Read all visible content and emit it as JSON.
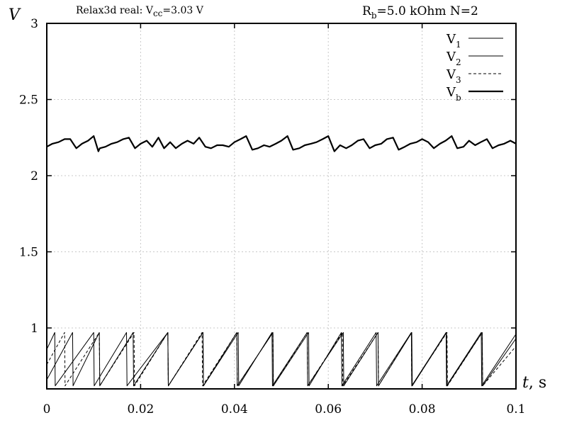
{
  "chart_data": {
    "type": "line",
    "title_left": "Relax3d real: V",
    "title_left_sub": "cc",
    "title_left_tail": "=3.03 V",
    "title_right_pre": "R",
    "title_right_sub": "b",
    "title_right_tail": "=5.0 kOhm N=2",
    "ylabel": "V",
    "xlabel": "t",
    "xlabel_unit": ", s",
    "xlim": [
      0,
      0.1
    ],
    "ylim": [
      0.6,
      3
    ],
    "x_ticks": [
      {
        "v": 0,
        "label": "0"
      },
      {
        "v": 0.02,
        "label": "0.02"
      },
      {
        "v": 0.04,
        "label": "0.04"
      },
      {
        "v": 0.06,
        "label": "0.06"
      },
      {
        "v": 0.08,
        "label": "0.08"
      },
      {
        "v": 0.1,
        "label": "0.1"
      }
    ],
    "y_ticks": [
      {
        "v": 1,
        "label": "1"
      },
      {
        "v": 1.5,
        "label": "1.5"
      },
      {
        "v": 2,
        "label": "2"
      },
      {
        "v": 2.5,
        "label": "2.5"
      },
      {
        "v": 3,
        "label": "3"
      }
    ],
    "grid": true,
    "legend_position": "top-right",
    "series": [
      {
        "name": "V",
        "sub": "1",
        "style": "thin",
        "x": [
          0,
          0.0017,
          0.0018,
          0.01,
          0.0101,
          0.017,
          0.0171,
          0.0258,
          0.0259,
          0.0333,
          0.0334,
          0.0405,
          0.0406,
          0.0482,
          0.0483,
          0.0558,
          0.0559,
          0.0628,
          0.0629,
          0.0702,
          0.0703,
          0.0777,
          0.0778,
          0.0851,
          0.0852,
          0.0926,
          0.0927,
          0.1
        ],
        "y": [
          0.86,
          0.97,
          0.62,
          0.97,
          0.62,
          0.97,
          0.62,
          0.97,
          0.62,
          0.97,
          0.62,
          0.97,
          0.62,
          0.97,
          0.62,
          0.97,
          0.62,
          0.97,
          0.62,
          0.97,
          0.62,
          0.97,
          0.62,
          0.97,
          0.62,
          0.97,
          0.62,
          0.96
        ]
      },
      {
        "name": "V",
        "sub": "2",
        "style": "thin",
        "x": [
          0,
          0.0055,
          0.0056,
          0.0112,
          0.0113,
          0.0184,
          0.0185,
          0.0258,
          0.0259,
          0.0333,
          0.0334,
          0.0408,
          0.0409,
          0.048,
          0.0481,
          0.0555,
          0.0556,
          0.0632,
          0.0633,
          0.0706,
          0.0707,
          0.0778,
          0.0779,
          0.0852,
          0.0853,
          0.0928,
          0.0929,
          0.1
        ],
        "y": [
          0.66,
          0.97,
          0.62,
          0.97,
          0.62,
          0.97,
          0.62,
          0.97,
          0.62,
          0.97,
          0.62,
          0.97,
          0.62,
          0.97,
          0.62,
          0.97,
          0.62,
          0.97,
          0.62,
          0.97,
          0.62,
          0.97,
          0.62,
          0.97,
          0.62,
          0.97,
          0.62,
          0.93
        ]
      },
      {
        "name": "V",
        "sub": "3",
        "style": "dashed",
        "x": [
          0,
          0.0038,
          0.0039,
          0.0112,
          0.0113,
          0.0186,
          0.0187,
          0.0258,
          0.0259,
          0.0331,
          0.0332,
          0.0405,
          0.0406,
          0.0482,
          0.0483,
          0.0555,
          0.0556,
          0.063,
          0.0631,
          0.0706,
          0.0707,
          0.0777,
          0.0778,
          0.0853,
          0.0854,
          0.0928,
          0.0929,
          0.1
        ],
        "y": [
          0.76,
          0.97,
          0.62,
          0.97,
          0.62,
          0.97,
          0.62,
          0.97,
          0.62,
          0.97,
          0.62,
          0.97,
          0.62,
          0.97,
          0.62,
          0.97,
          0.62,
          0.97,
          0.62,
          0.97,
          0.62,
          0.97,
          0.62,
          0.97,
          0.62,
          0.97,
          0.62,
          0.88
        ]
      },
      {
        "name": "V",
        "sub": "b",
        "style": "thick",
        "x": [
          0,
          0.0012,
          0.0025,
          0.0038,
          0.005,
          0.0063,
          0.0075,
          0.0088,
          0.01,
          0.011,
          0.0113,
          0.0125,
          0.0138,
          0.015,
          0.0163,
          0.0175,
          0.0188,
          0.02,
          0.0213,
          0.0225,
          0.0238,
          0.025,
          0.0263,
          0.0275,
          0.0288,
          0.03,
          0.0313,
          0.0325,
          0.0338,
          0.035,
          0.0363,
          0.0375,
          0.0388,
          0.04,
          0.0413,
          0.0425,
          0.0438,
          0.045,
          0.0463,
          0.0475,
          0.0488,
          0.05,
          0.0513,
          0.0525,
          0.0538,
          0.055,
          0.0563,
          0.0575,
          0.0588,
          0.06,
          0.0613,
          0.0625,
          0.0638,
          0.065,
          0.0663,
          0.0675,
          0.0688,
          0.07,
          0.0713,
          0.0725,
          0.0738,
          0.075,
          0.0763,
          0.0775,
          0.0788,
          0.08,
          0.0813,
          0.0825,
          0.0838,
          0.085,
          0.0863,
          0.0875,
          0.0888,
          0.09,
          0.0913,
          0.0925,
          0.0938,
          0.095,
          0.0963,
          0.0975,
          0.0988,
          0.1
        ],
        "y": [
          2.19,
          2.21,
          2.22,
          2.24,
          2.24,
          2.18,
          2.21,
          2.23,
          2.26,
          2.16,
          2.18,
          2.19,
          2.21,
          2.22,
          2.24,
          2.25,
          2.18,
          2.21,
          2.23,
          2.19,
          2.25,
          2.18,
          2.22,
          2.18,
          2.21,
          2.23,
          2.21,
          2.25,
          2.19,
          2.18,
          2.2,
          2.2,
          2.19,
          2.22,
          2.24,
          2.26,
          2.17,
          2.18,
          2.2,
          2.19,
          2.21,
          2.23,
          2.26,
          2.17,
          2.18,
          2.2,
          2.21,
          2.22,
          2.24,
          2.26,
          2.16,
          2.2,
          2.18,
          2.2,
          2.23,
          2.24,
          2.18,
          2.2,
          2.21,
          2.24,
          2.25,
          2.17,
          2.19,
          2.21,
          2.22,
          2.24,
          2.22,
          2.18,
          2.21,
          2.23,
          2.26,
          2.18,
          2.19,
          2.23,
          2.2,
          2.22,
          2.24,
          2.18,
          2.2,
          2.21,
          2.23,
          2.21
        ]
      }
    ]
  },
  "colors": {
    "ink": "#000000",
    "grid": "#c8c8c8",
    "background": "#ffffff"
  }
}
